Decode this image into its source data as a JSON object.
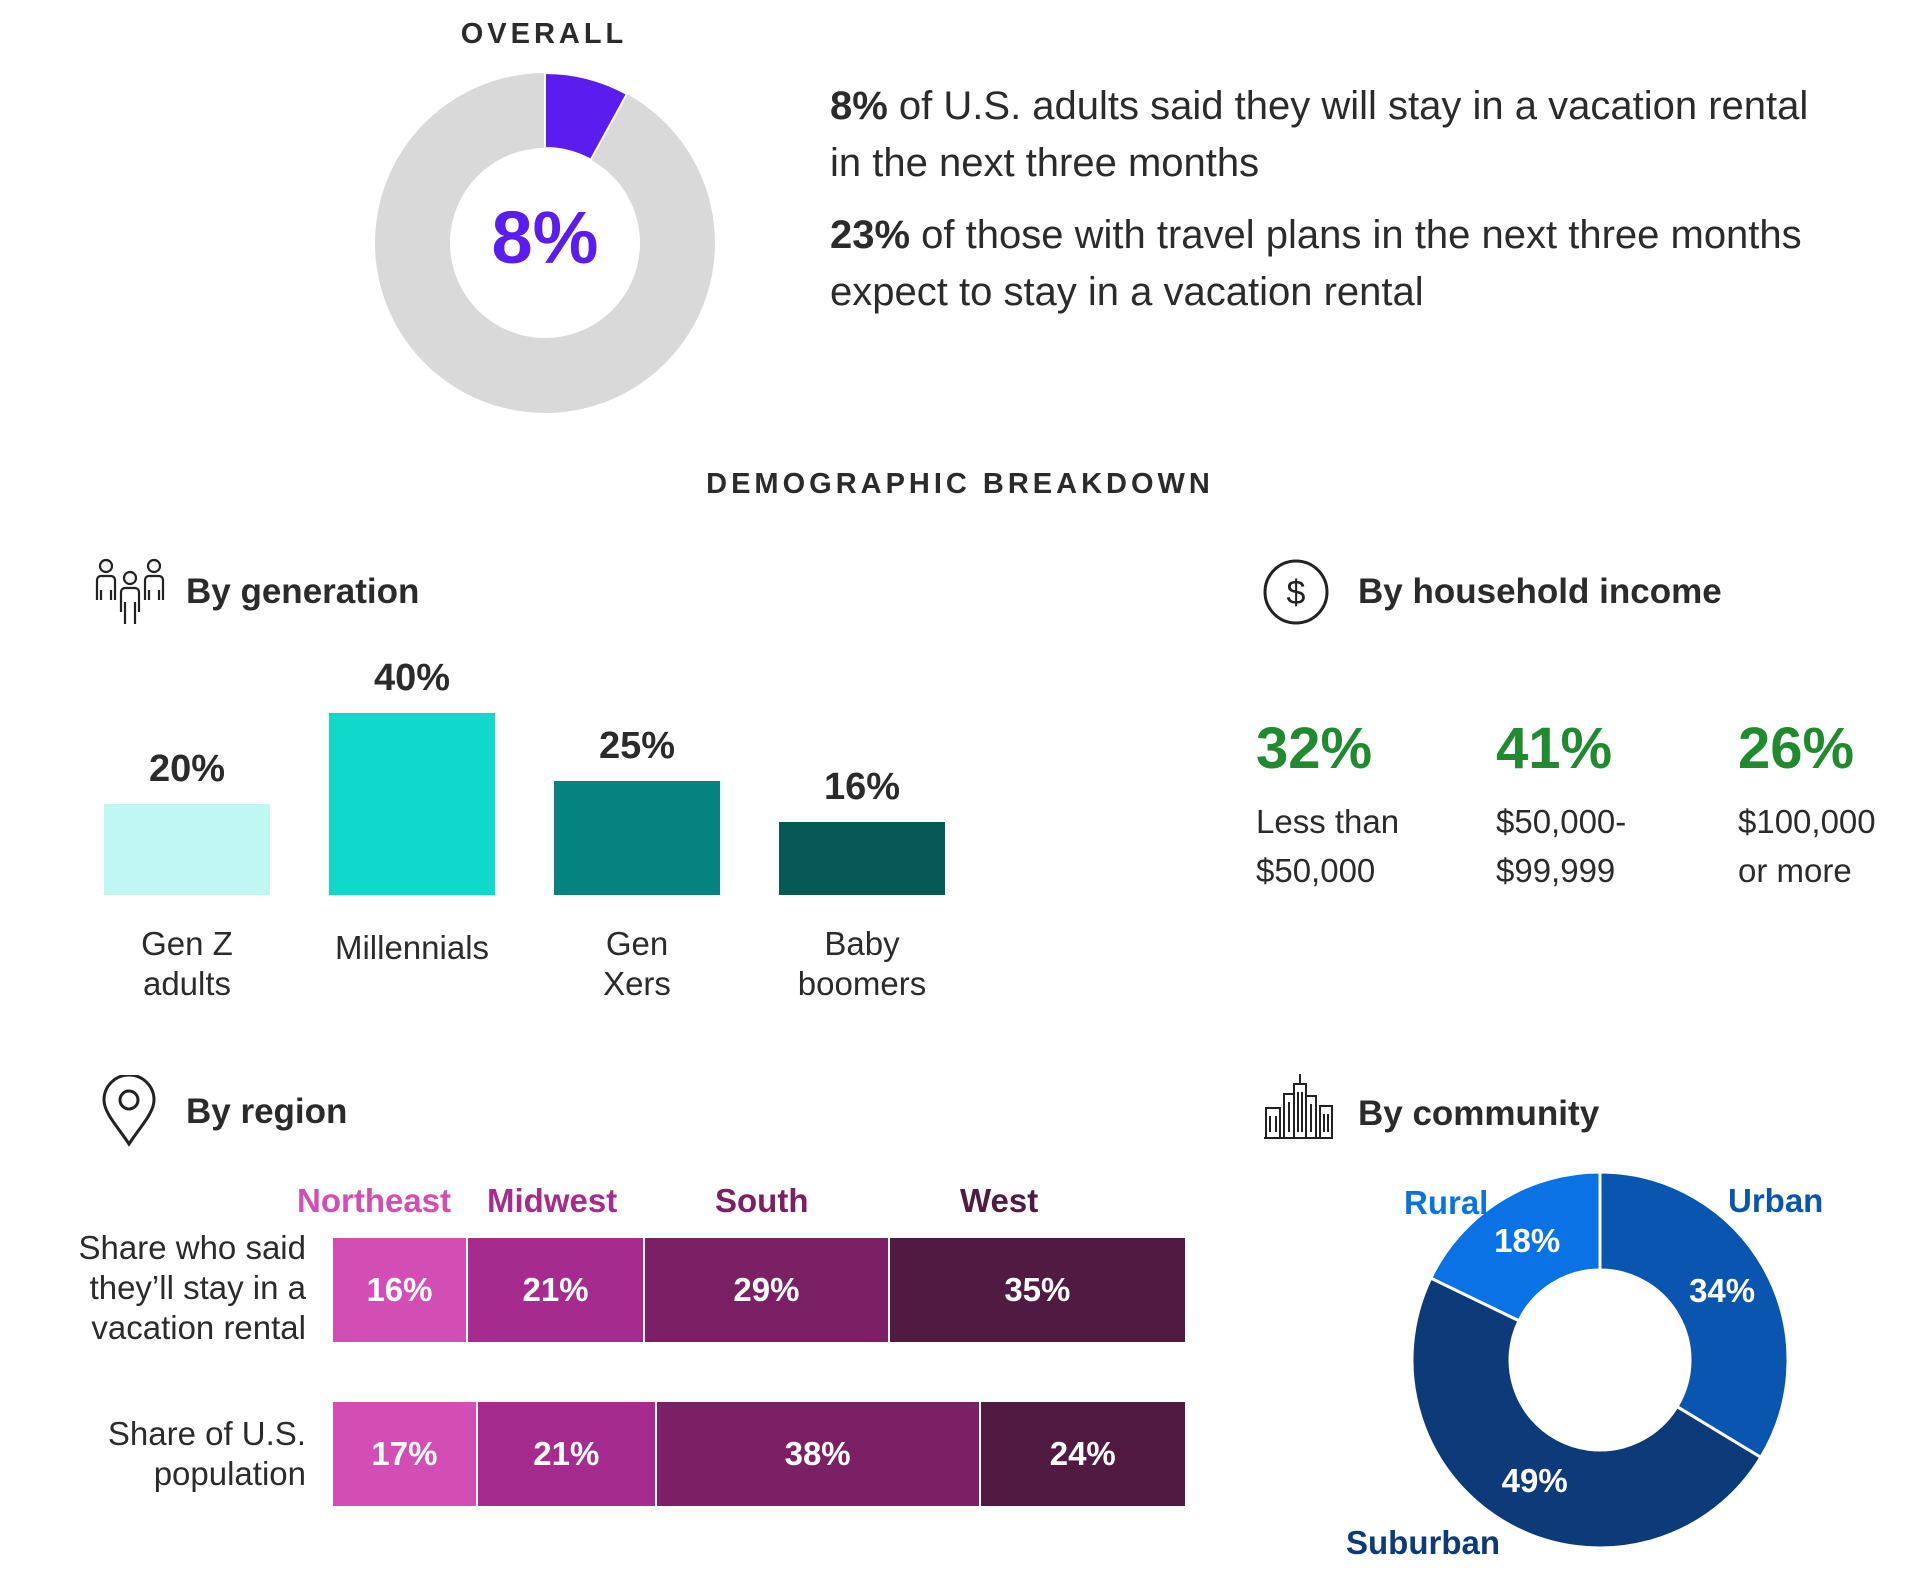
{
  "overall": {
    "title": "OVERALL",
    "center_label": "8%",
    "value": 8,
    "colors": {
      "highlight": "#5b1cf0",
      "rest": "#d9d9d9"
    }
  },
  "stats": [
    {
      "bold": "8%",
      "text": " of U.S. adults said they will stay in a vacation rental in the next three months"
    },
    {
      "bold": "23%",
      "text": " of those with travel plans in the next three months expect to stay in a vacation rental"
    }
  ],
  "demographic_title": "DEMOGRAPHIC BREAKDOWN",
  "sections": {
    "generation": {
      "label": "By generation",
      "icon": "people-group-icon"
    },
    "income": {
      "label": "By household income",
      "icon": "dollar-circle-icon"
    },
    "region": {
      "label": "By region",
      "icon": "map-pin-icon"
    },
    "community": {
      "label": "By community",
      "icon": "city-skyline-icon"
    }
  },
  "chart_data": [
    {
      "type": "bar",
      "categories": [
        "Gen Z adults",
        "Millennials",
        "Gen Xers",
        "Baby boomers"
      ],
      "category_lines": [
        [
          "Gen Z",
          "adults"
        ],
        [
          "Millennials"
        ],
        [
          "Gen",
          "Xers"
        ],
        [
          "Baby",
          "boomers"
        ]
      ],
      "values": [
        20,
        40,
        25,
        16
      ],
      "value_labels": [
        "20%",
        "40%",
        "25%",
        "16%"
      ],
      "colors": [
        "#bff8f2",
        "#10d8cb",
        "#048381",
        "#065954"
      ]
    },
    {
      "type": "table",
      "items": [
        {
          "value": "32%",
          "label_lines": [
            "Less than",
            "$50,000"
          ]
        },
        {
          "value": "41%",
          "label_lines": [
            "$50,000-",
            "$99,999"
          ]
        },
        {
          "value": "26%",
          "label_lines": [
            "$100,000",
            "or more"
          ]
        }
      ],
      "color": "#1f8a2e"
    },
    {
      "type": "bar",
      "orientation": "horizontal-stacked",
      "categories": [
        "Northeast",
        "Midwest",
        "South",
        "West"
      ],
      "colors": [
        "#d24db4",
        "#a52c8e",
        "#7b2064",
        "#511a42"
      ],
      "series": [
        {
          "name": "Share who said they'll stay in a vacation rental",
          "label_lines": [
            "Share who said",
            "they’ll stay in a",
            "vacation rental"
          ],
          "values": [
            16,
            21,
            29,
            35
          ],
          "value_labels": [
            "16%",
            "21%",
            "29%",
            "35%"
          ]
        },
        {
          "name": "Share of U.S. population",
          "label_lines": [
            "Share of U.S.",
            "population"
          ],
          "values": [
            17,
            21,
            38,
            24
          ],
          "value_labels": [
            "17%",
            "21%",
            "38%",
            "24%"
          ]
        }
      ]
    },
    {
      "type": "pie",
      "categories": [
        "Urban",
        "Suburban",
        "Rural"
      ],
      "values": [
        34,
        49,
        18
      ],
      "value_labels": [
        "34%",
        "49%",
        "18%"
      ],
      "colors": [
        "#0a55b0",
        "#0d3a78",
        "#0a72e4"
      ],
      "label_colors": [
        "#0a55b0",
        "#0d3a78",
        "#0a72e4"
      ]
    }
  ]
}
